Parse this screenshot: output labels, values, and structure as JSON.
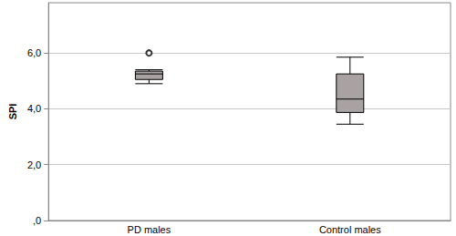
{
  "chart_data": {
    "type": "boxplot",
    "y_label": "SPI",
    "categories": [
      "PD males",
      "Control males"
    ],
    "values": [
      [
        4.9,
        5.05,
        5.25,
        5.35,
        5.4
      ],
      [
        3.45,
        3.87,
        4.35,
        5.25,
        5.85
      ]
    ],
    "outliers": [
      {
        "category": "PD males",
        "value": 6.0
      }
    ],
    "color": "#a8a2a2",
    "ylim": [
      0,
      7.8
    ],
    "yticks": [
      {
        "value": 0,
        "label": ",0"
      },
      {
        "value": 2,
        "label": "2,0"
      },
      {
        "value": 4,
        "label": "4,0"
      },
      {
        "value": 6,
        "label": "6,0"
      }
    ],
    "grid": true
  }
}
